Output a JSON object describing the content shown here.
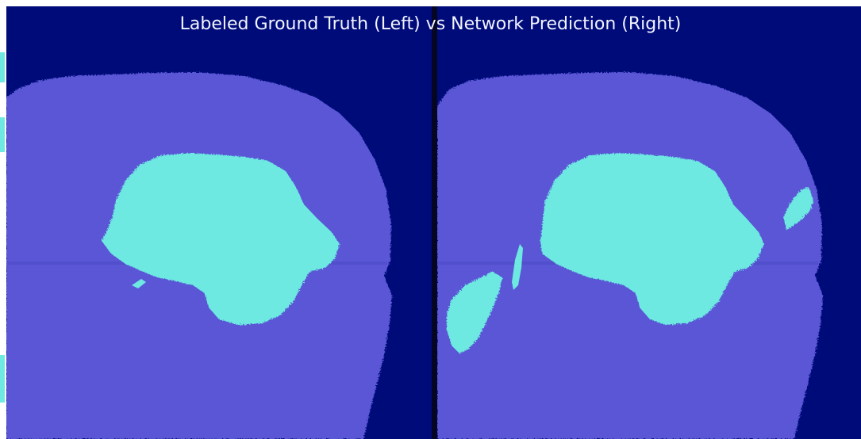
{
  "figure": {
    "title": "Labeled Ground Truth (Left) vs Network Prediction (Right)",
    "colors": {
      "background": "#000b7a",
      "tissue": "#5a56d6",
      "lesion": "#6de9e1",
      "divider": "#040622",
      "title_text": "#f2f4ff"
    },
    "panels": [
      {
        "name": "Labeled Ground Truth",
        "side": "left"
      },
      {
        "name": "Network Prediction",
        "side": "right"
      }
    ]
  }
}
